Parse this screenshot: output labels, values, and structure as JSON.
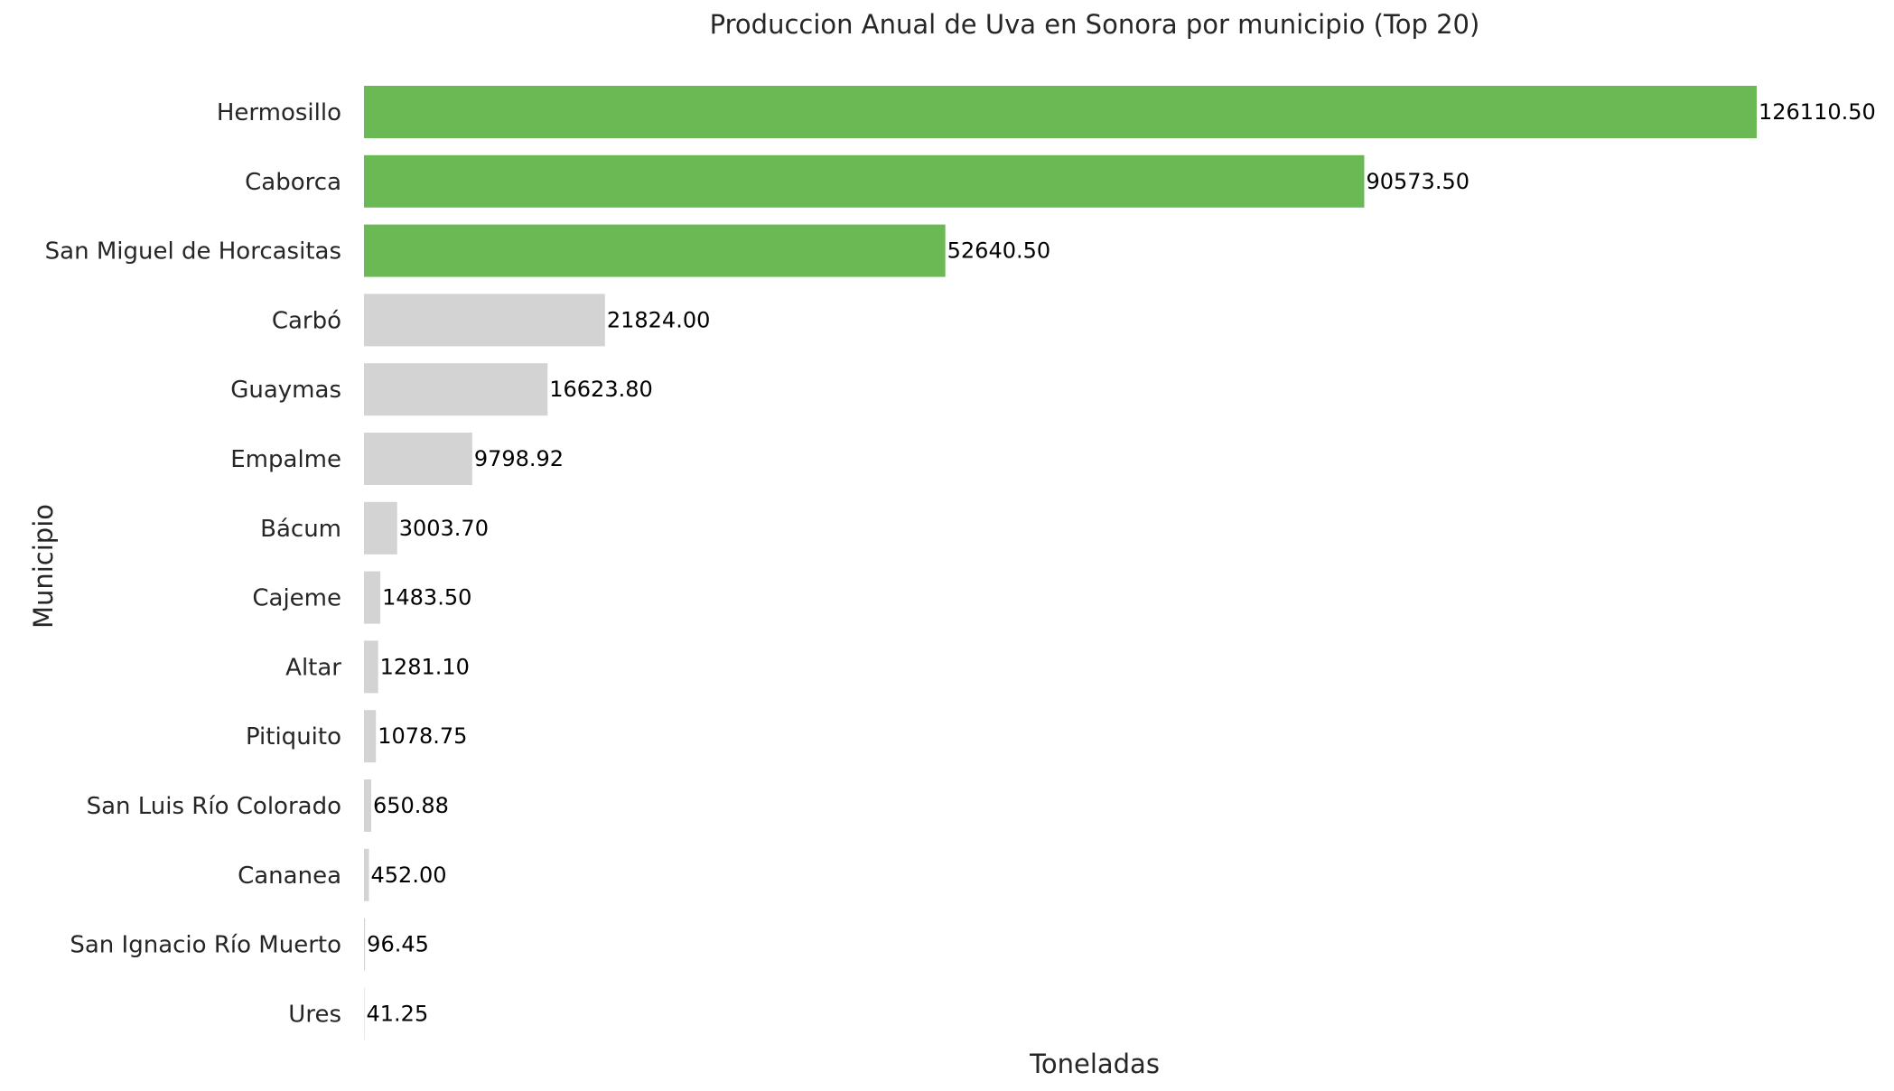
{
  "chart_data": {
    "type": "bar",
    "orientation": "horizontal",
    "title": "Produccion Anual de Uva en Sonora por municipio (Top 20)",
    "xlabel": "Toneladas",
    "ylabel": "Municipio",
    "xlim": [
      0,
      126110.5
    ],
    "grid": false,
    "categories": [
      "Hermosillo",
      "Caborca",
      "San Miguel de Horcasitas",
      "Carbó",
      "Guaymas",
      "Empalme",
      "Bácum",
      "Cajeme",
      "Altar",
      "Pitiquito",
      "San Luis Río Colorado",
      "Cananea",
      "San Ignacio Río Muerto",
      "Ures"
    ],
    "values": [
      126110.5,
      90573.5,
      52640.5,
      21824.0,
      16623.8,
      9798.92,
      3003.7,
      1483.5,
      1281.1,
      1078.75,
      650.88,
      452.0,
      96.45,
      41.25
    ],
    "value_labels": [
      "126110.50",
      "90573.50",
      "52640.50",
      "21824.00",
      "16623.80",
      "9798.92",
      "3003.70",
      "1483.50",
      "1281.10",
      "1078.75",
      "650.88",
      "452.00",
      "96.45",
      "41.25"
    ],
    "highlight_top_n": 3,
    "colors": {
      "highlight": "#6ab955",
      "default": "#d3d3d3"
    }
  }
}
